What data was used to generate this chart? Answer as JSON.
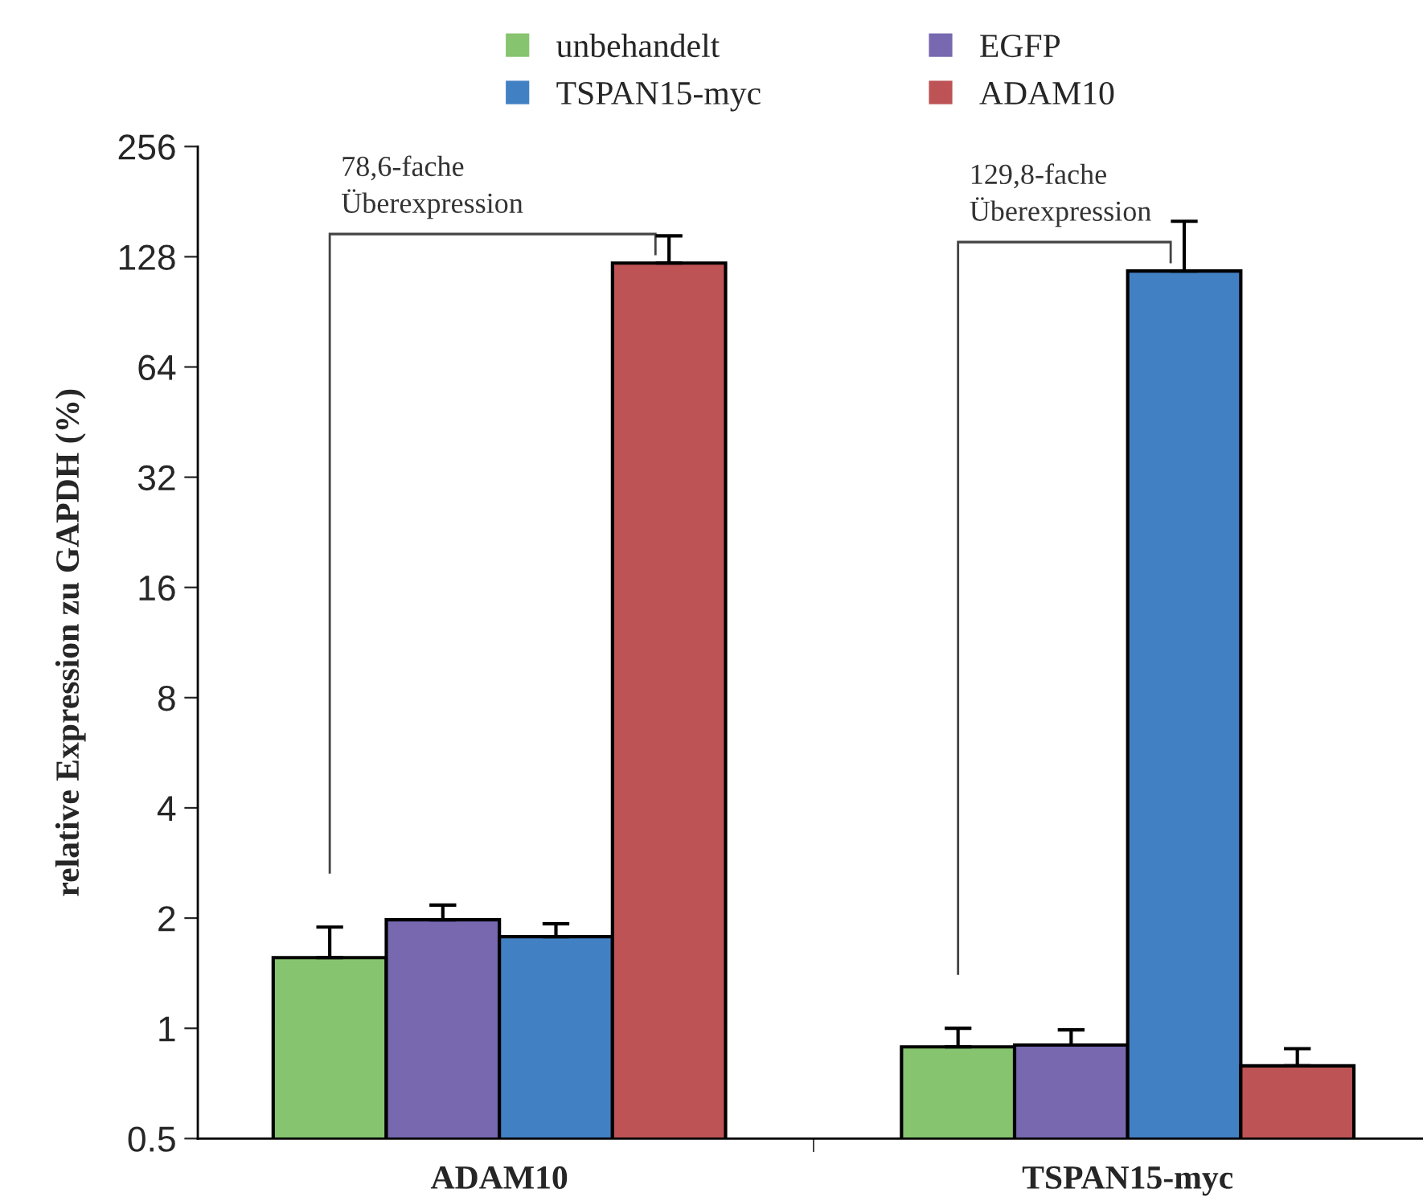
{
  "chart_data": {
    "type": "bar",
    "ylabel": "relative Expression zu GAPDH (%)",
    "categories": [
      "ADAM10",
      "TSPAN15-myc"
    ],
    "series": [
      {
        "name": "unbehandelt",
        "color": "#86c46f",
        "values": [
          1.56,
          0.89
        ],
        "errors": [
          [
            1.56,
            1.89
          ],
          [
            0.89,
            1.0
          ]
        ]
      },
      {
        "name": "EGFP",
        "color": "#7768b0",
        "values": [
          1.98,
          0.9
        ],
        "errors": [
          [
            1.98,
            2.17
          ],
          [
            0.9,
            0.99
          ]
        ]
      },
      {
        "name": "TSPAN15-myc",
        "color": "#4280c4",
        "values": [
          1.78,
          117
        ],
        "errors": [
          [
            1.78,
            1.93
          ],
          [
            117,
            160
          ]
        ]
      },
      {
        "name": "ADAM10",
        "color": "#bd5355",
        "values": [
          123,
          0.79
        ],
        "errors": [
          [
            123,
            146
          ],
          [
            0.79,
            0.88
          ]
        ]
      }
    ],
    "log": true,
    "ylim": [
      0.5,
      256
    ],
    "yticks": [
      0.5,
      1,
      2,
      4,
      8,
      16,
      32,
      64,
      128,
      256
    ],
    "annotations": [
      "78,6-fache\nÜberexpression",
      "129,8-fache\nÜberexpression"
    ],
    "legend": "top",
    "grid": false
  }
}
